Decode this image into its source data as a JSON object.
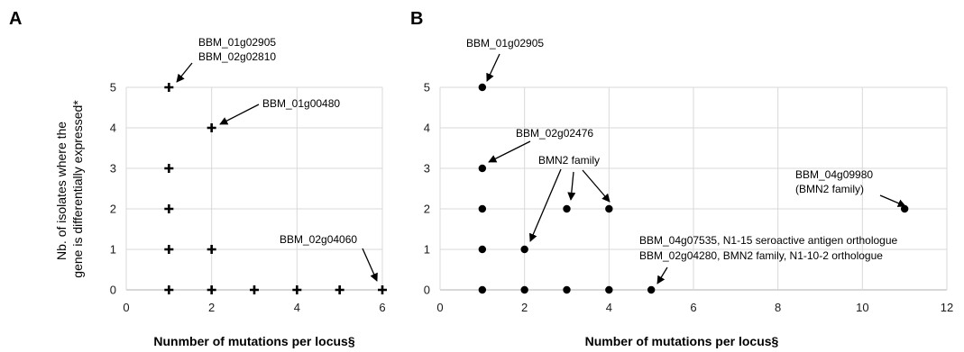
{
  "chart_data": [
    {
      "type": "scatter",
      "panel_label": "A",
      "marker": "plus",
      "xlabel": "Nunmber of mutations per locus§",
      "ylabel_lines": [
        "Nb. of isolates where the",
        "gene is differentially expressed*"
      ],
      "xlim": [
        0,
        6
      ],
      "ylim": [
        0,
        5
      ],
      "x_ticks": [
        0,
        2,
        4,
        6
      ],
      "y_ticks": [
        0,
        1,
        2,
        3,
        4,
        5
      ],
      "grid": true,
      "points": [
        {
          "x": 1,
          "y": 5
        },
        {
          "x": 2,
          "y": 4
        },
        {
          "x": 1,
          "y": 3
        },
        {
          "x": 1,
          "y": 2
        },
        {
          "x": 1,
          "y": 1
        },
        {
          "x": 2,
          "y": 1
        },
        {
          "x": 1,
          "y": 0
        },
        {
          "x": 2,
          "y": 0
        },
        {
          "x": 3,
          "y": 0
        },
        {
          "x": 4,
          "y": 0
        },
        {
          "x": 5,
          "y": 0
        },
        {
          "x": 6,
          "y": 0
        }
      ],
      "annotations": [
        {
          "lines": [
            "BBM_01g02905",
            "BBM_02g02810"
          ],
          "target": [
            1,
            5
          ]
        },
        {
          "lines": [
            "BBM_01g00480"
          ],
          "target": [
            2,
            4
          ]
        },
        {
          "lines": [
            "BBM_02g04060"
          ],
          "target": [
            6,
            0
          ]
        }
      ]
    },
    {
      "type": "scatter",
      "panel_label": "B",
      "marker": "dot",
      "xlabel": "Number of mutations per locus§",
      "xlim": [
        0,
        12
      ],
      "ylim": [
        0,
        5
      ],
      "x_ticks": [
        0,
        2,
        4,
        6,
        8,
        10,
        12
      ],
      "y_ticks": [
        0,
        1,
        2,
        3,
        4,
        5
      ],
      "grid": true,
      "points": [
        {
          "x": 1,
          "y": 5
        },
        {
          "x": 1,
          "y": 3
        },
        {
          "x": 1,
          "y": 2
        },
        {
          "x": 1,
          "y": 1
        },
        {
          "x": 2,
          "y": 1
        },
        {
          "x": 3,
          "y": 2
        },
        {
          "x": 4,
          "y": 2
        },
        {
          "x": 11,
          "y": 2
        },
        {
          "x": 1,
          "y": 0
        },
        {
          "x": 2,
          "y": 0
        },
        {
          "x": 3,
          "y": 0
        },
        {
          "x": 4,
          "y": 0
        },
        {
          "x": 5,
          "y": 0
        }
      ],
      "annotations": [
        {
          "lines": [
            "BBM_01g02905"
          ],
          "target": [
            1,
            5
          ]
        },
        {
          "lines": [
            "BBM_02g02476"
          ],
          "target": [
            1,
            3
          ]
        },
        {
          "lines": [
            "BMN2 family"
          ],
          "target": [
            2,
            1
          ]
        },
        {
          "lines": [
            "BBM_04g09980",
            "(BMN2 family)"
          ],
          "target": [
            11,
            2
          ]
        },
        {
          "lines": [
            "BBM_04g07535, N1-15 seroactive antigen orthologue",
            "BBM_02g04280, BMN2 family, N1-10-2 orthologue"
          ],
          "target": [
            5,
            0
          ]
        }
      ]
    }
  ]
}
